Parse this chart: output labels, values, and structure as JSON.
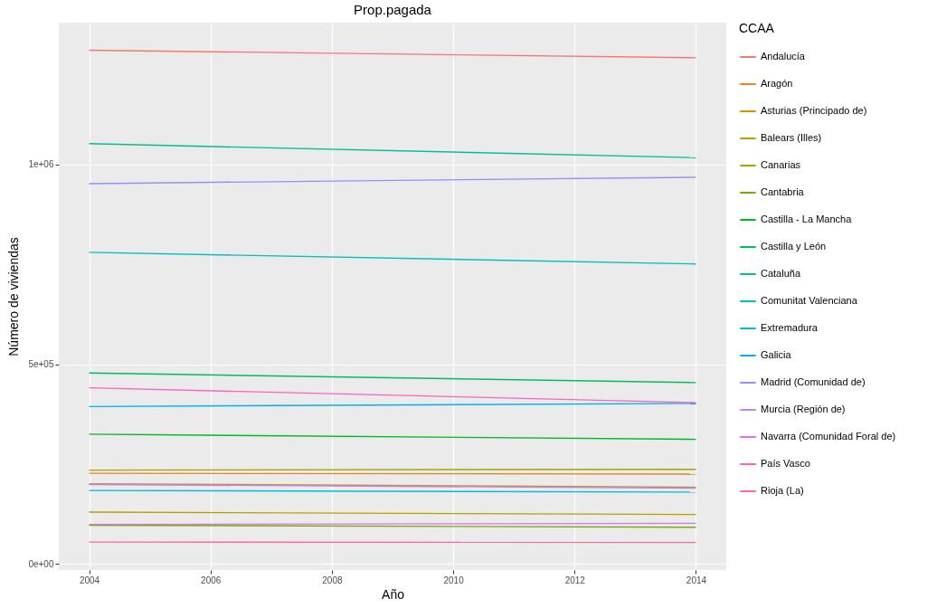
{
  "chart_data": {
    "type": "line",
    "title": "Prop.pagada",
    "xlabel": "Año",
    "ylabel": "Número de viviendas",
    "legend_title": "CCAA",
    "legend": "right",
    "grid": true,
    "x": [
      2004,
      2014
    ],
    "xlim": [
      2003.5,
      2014.5
    ],
    "xticks": [
      2004,
      2006,
      2008,
      2010,
      2012,
      2014
    ],
    "ylim": [
      -15000,
      1355000
    ],
    "yticks": [
      {
        "value": 0,
        "label": "0e+00"
      },
      {
        "value": 500000,
        "label": "5e+05"
      },
      {
        "value": 1000000,
        "label": "1e+06"
      }
    ],
    "series": [
      {
        "name": "Andalucía",
        "color": "#f8766d",
        "values": [
          1286000,
          1267000
        ]
      },
      {
        "name": "Aragón",
        "color": "#e8851e",
        "values": [
          227000,
          225000
        ]
      },
      {
        "name": "Asturias (Principado de)",
        "color": "#d39200",
        "values": [
          201000,
          192000
        ]
      },
      {
        "name": "Balears (Illes)",
        "color": "#ba9e00",
        "values": [
          130000,
          124000
        ]
      },
      {
        "name": "Canarias",
        "color": "#9ca700",
        "values": [
          235000,
          237000
        ]
      },
      {
        "name": "Cantabria",
        "color": "#71b000",
        "values": [
          97000,
          92000
        ]
      },
      {
        "name": "Castilla - La Mancha",
        "color": "#00b81f",
        "values": [
          325000,
          312000
        ]
      },
      {
        "name": "Castilla y León",
        "color": "#00bd5c",
        "values": [
          478000,
          454000
        ]
      },
      {
        "name": "Cataluña",
        "color": "#00c08d",
        "values": [
          1052000,
          1017000
        ]
      },
      {
        "name": "Comunitat Valenciana",
        "color": "#00c0b8",
        "values": [
          780000,
          751000
        ]
      },
      {
        "name": "Extremadura",
        "color": "#00bcd8",
        "values": [
          184000,
          180000
        ]
      },
      {
        "name": "Galicia",
        "color": "#00b0f6",
        "values": [
          394000,
          402000
        ]
      },
      {
        "name": "Madrid (Comunidad de)",
        "color": "#8f91ff",
        "values": [
          952000,
          968000
        ]
      },
      {
        "name": "Murcia (Región de)",
        "color": "#b983ff",
        "values": [
          199000,
          190000
        ]
      },
      {
        "name": "Navarra (Comunidad Foral de)",
        "color": "#e36ef6",
        "values": [
          99000,
          102000
        ]
      },
      {
        "name": "País Vasco",
        "color": "#ff61c3",
        "values": [
          441000,
          404000
        ]
      },
      {
        "name": "Rioja (La)",
        "color": "#ff6a98",
        "values": [
          55000,
          54000
        ]
      }
    ]
  }
}
